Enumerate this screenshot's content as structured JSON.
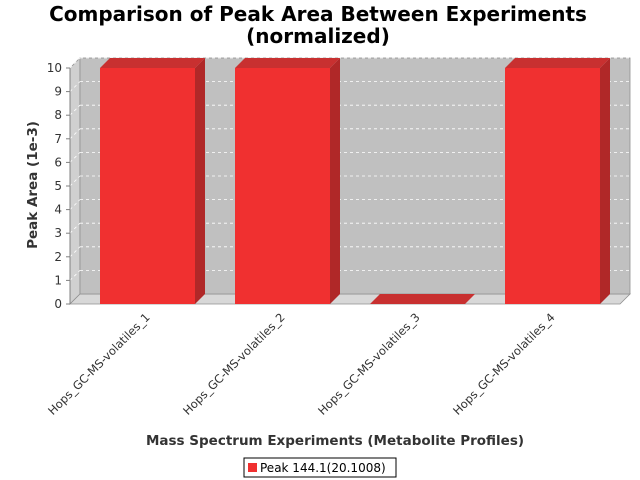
{
  "chart_data": {
    "type": "bar",
    "title": "Comparison of Peak Area Between Experiments",
    "subtitle": "(normalized)",
    "xlabel": "Mass Spectrum Experiments (Metabolite Profiles)",
    "ylabel": "Peak Area (1e-3)",
    "ylim": [
      0,
      10
    ],
    "yticks": [
      "0",
      "1",
      "2",
      "3",
      "4",
      "5",
      "6",
      "7",
      "8",
      "9",
      "10"
    ],
    "categories": [
      "Hops_GC-MS-volatiles_1",
      "Hops_GC-MS-volatiles_2",
      "Hops_GC-MS-volatiles_3",
      "Hops_GC-MS-volatiles_4"
    ],
    "series": [
      {
        "name": "Peak 144.1(20.1008)",
        "values": [
          10,
          10,
          0,
          10
        ]
      }
    ],
    "grid": true,
    "legend_position": "bottom",
    "colors": {
      "bar_front": "#f03030",
      "bar_side": "#b02828",
      "bar_top": "#c83030",
      "plot_background": "#c0c0c0",
      "grid": "#ffffff"
    }
  }
}
